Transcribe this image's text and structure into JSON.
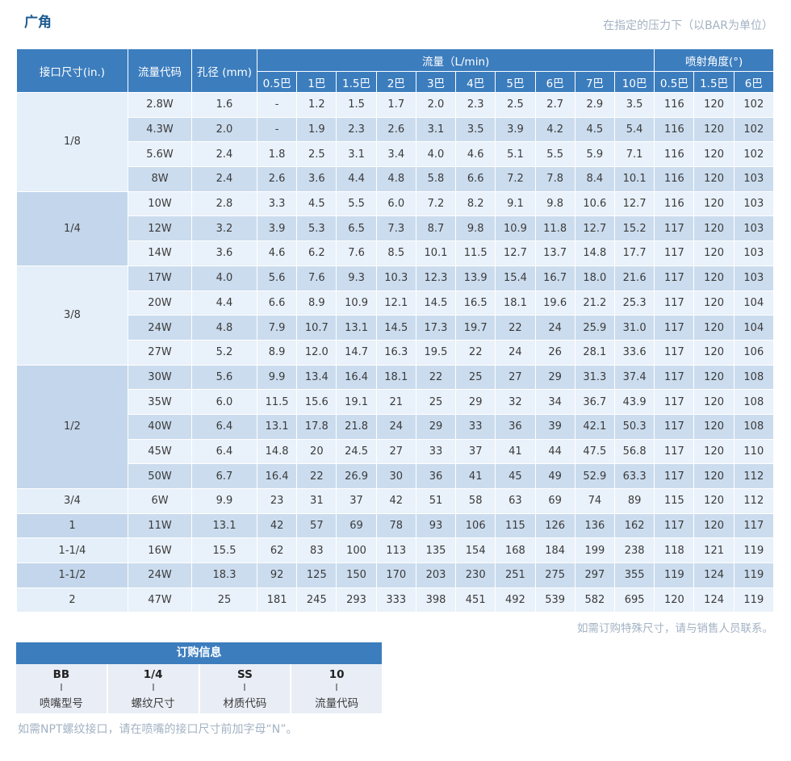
{
  "page": {
    "title": "广角",
    "pressure_note": "在指定的压力下（以BAR为单位）",
    "special_order_note": "如需订购特殊尺寸，请与销售人员联系。",
    "npt_note": "如需NPT螺纹接口，请在喷嘴的接口尺寸前加字母“N”。"
  },
  "colors": {
    "header_blue": "#3c7dbe",
    "title_blue": "#1c5c91",
    "row_light": "#e9f1fa",
    "row_dark": "#cbdcee",
    "group_light": "#e5eff9",
    "group_dark": "#c3d6eb",
    "note_gray": "#a3b2c3"
  },
  "table": {
    "headers": {
      "size": "接口尺寸(in.)",
      "code": "流量代码",
      "orifice": "孔径 (mm)",
      "flow_group": "流量（L/min)",
      "angle_group": "喷射角度(°)",
      "flow_pressures": [
        "0.5巴",
        "1巴",
        "1.5巴",
        "2巴",
        "3巴",
        "4巴",
        "5巴",
        "6巴",
        "7巴",
        "10巴"
      ],
      "angle_pressures": [
        "0.5巴",
        "1.5巴",
        "6巴"
      ]
    },
    "groups": [
      {
        "size": "1/8",
        "rows": [
          {
            "code": "2.8W",
            "orifice": "1.6",
            "flows": [
              "-",
              "1.2",
              "1.5",
              "1.7",
              "2.0",
              "2.3",
              "2.5",
              "2.7",
              "2.9",
              "3.5"
            ],
            "angles": [
              "116",
              "120",
              "102"
            ]
          },
          {
            "code": "4.3W",
            "orifice": "2.0",
            "flows": [
              "-",
              "1.9",
              "2.3",
              "2.6",
              "3.1",
              "3.5",
              "3.9",
              "4.2",
              "4.5",
              "5.4"
            ],
            "angles": [
              "116",
              "120",
              "102"
            ]
          },
          {
            "code": "5.6W",
            "orifice": "2.4",
            "flows": [
              "1.8",
              "2.5",
              "3.1",
              "3.4",
              "4.0",
              "4.6",
              "5.1",
              "5.5",
              "5.9",
              "7.1"
            ],
            "angles": [
              "116",
              "120",
              "102"
            ]
          },
          {
            "code": "8W",
            "orifice": "2.4",
            "flows": [
              "2.6",
              "3.6",
              "4.4",
              "4.8",
              "5.8",
              "6.6",
              "7.2",
              "7.8",
              "8.4",
              "10.1"
            ],
            "angles": [
              "116",
              "120",
              "103"
            ]
          }
        ]
      },
      {
        "size": "1/4",
        "rows": [
          {
            "code": "10W",
            "orifice": "2.8",
            "flows": [
              "3.3",
              "4.5",
              "5.5",
              "6.0",
              "7.2",
              "8.2",
              "9.1",
              "9.8",
              "10.6",
              "12.7"
            ],
            "angles": [
              "116",
              "120",
              "103"
            ]
          },
          {
            "code": "12W",
            "orifice": "3.2",
            "flows": [
              "3.9",
              "5.3",
              "6.5",
              "7.3",
              "8.7",
              "9.8",
              "10.9",
              "11.8",
              "12.7",
              "15.2"
            ],
            "angles": [
              "117",
              "120",
              "103"
            ]
          },
          {
            "code": "14W",
            "orifice": "3.6",
            "flows": [
              "4.6",
              "6.2",
              "7.6",
              "8.5",
              "10.1",
              "11.5",
              "12.7",
              "13.7",
              "14.8",
              "17.7"
            ],
            "angles": [
              "117",
              "120",
              "103"
            ]
          }
        ]
      },
      {
        "size": "3/8",
        "rows": [
          {
            "code": "17W",
            "orifice": "4.0",
            "flows": [
              "5.6",
              "7.6",
              "9.3",
              "10.3",
              "12.3",
              "13.9",
              "15.4",
              "16.7",
              "18.0",
              "21.6"
            ],
            "angles": [
              "117",
              "120",
              "103"
            ]
          },
          {
            "code": "20W",
            "orifice": "4.4",
            "flows": [
              "6.6",
              "8.9",
              "10.9",
              "12.1",
              "14.5",
              "16.5",
              "18.1",
              "19.6",
              "21.2",
              "25.3"
            ],
            "angles": [
              "117",
              "120",
              "104"
            ]
          },
          {
            "code": "24W",
            "orifice": "4.8",
            "flows": [
              "7.9",
              "10.7",
              "13.1",
              "14.5",
              "17.3",
              "19.7",
              "22",
              "24",
              "25.9",
              "31.0"
            ],
            "angles": [
              "117",
              "120",
              "104"
            ]
          },
          {
            "code": "27W",
            "orifice": "5.2",
            "flows": [
              "8.9",
              "12.0",
              "14.7",
              "16.3",
              "19.5",
              "22",
              "24",
              "26",
              "28.1",
              "33.6"
            ],
            "angles": [
              "117",
              "120",
              "106"
            ]
          }
        ]
      },
      {
        "size": "1/2",
        "rows": [
          {
            "code": "30W",
            "orifice": "5.6",
            "flows": [
              "9.9",
              "13.4",
              "16.4",
              "18.1",
              "22",
              "25",
              "27",
              "29",
              "31.3",
              "37.4"
            ],
            "angles": [
              "117",
              "120",
              "108"
            ]
          },
          {
            "code": "35W",
            "orifice": "6.0",
            "flows": [
              "11.5",
              "15.6",
              "19.1",
              "21",
              "25",
              "29",
              "32",
              "34",
              "36.7",
              "43.9"
            ],
            "angles": [
              "117",
              "120",
              "108"
            ]
          },
          {
            "code": "40W",
            "orifice": "6.4",
            "flows": [
              "13.1",
              "17.8",
              "21.8",
              "24",
              "29",
              "33",
              "36",
              "39",
              "42.1",
              "50.3"
            ],
            "angles": [
              "117",
              "120",
              "108"
            ]
          },
          {
            "code": "45W",
            "orifice": "6.4",
            "flows": [
              "14.8",
              "20",
              "24.5",
              "27",
              "33",
              "37",
              "41",
              "44",
              "47.5",
              "56.8"
            ],
            "angles": [
              "117",
              "120",
              "110"
            ]
          },
          {
            "code": "50W",
            "orifice": "6.7",
            "flows": [
              "16.4",
              "22",
              "26.9",
              "30",
              "36",
              "41",
              "45",
              "49",
              "52.9",
              "63.3"
            ],
            "angles": [
              "117",
              "120",
              "112"
            ]
          }
        ]
      },
      {
        "size": "3/4",
        "rows": [
          {
            "code": "6W",
            "orifice": "9.9",
            "flows": [
              "23",
              "31",
              "37",
              "42",
              "51",
              "58",
              "63",
              "69",
              "74",
              "89"
            ],
            "angles": [
              "115",
              "120",
              "112"
            ]
          }
        ]
      },
      {
        "size": "1",
        "rows": [
          {
            "code": "11W",
            "orifice": "13.1",
            "flows": [
              "42",
              "57",
              "69",
              "78",
              "93",
              "106",
              "115",
              "126",
              "136",
              "162"
            ],
            "angles": [
              "117",
              "120",
              "117"
            ]
          }
        ]
      },
      {
        "size": "1-1/4",
        "rows": [
          {
            "code": "16W",
            "orifice": "15.5",
            "flows": [
              "62",
              "83",
              "100",
              "113",
              "135",
              "154",
              "168",
              "184",
              "199",
              "238"
            ],
            "angles": [
              "118",
              "121",
              "119"
            ]
          }
        ]
      },
      {
        "size": "1-1/2",
        "rows": [
          {
            "code": "24W",
            "orifice": "18.3",
            "flows": [
              "92",
              "125",
              "150",
              "170",
              "203",
              "230",
              "251",
              "275",
              "297",
              "355"
            ],
            "angles": [
              "119",
              "124",
              "119"
            ]
          }
        ]
      },
      {
        "size": "2",
        "rows": [
          {
            "code": "47W",
            "orifice": "25",
            "flows": [
              "181",
              "245",
              "293",
              "333",
              "398",
              "451",
              "492",
              "539",
              "582",
              "695"
            ],
            "angles": [
              "120",
              "124",
              "119"
            ]
          }
        ]
      }
    ]
  },
  "ordering": {
    "title": "订购信息",
    "items": [
      {
        "value": "BB",
        "label": "喷嘴型号"
      },
      {
        "value": "1/4",
        "label": "螺纹尺寸"
      },
      {
        "value": "SS",
        "label": "材质代码"
      },
      {
        "value": "10",
        "label": "流量代码"
      }
    ]
  }
}
